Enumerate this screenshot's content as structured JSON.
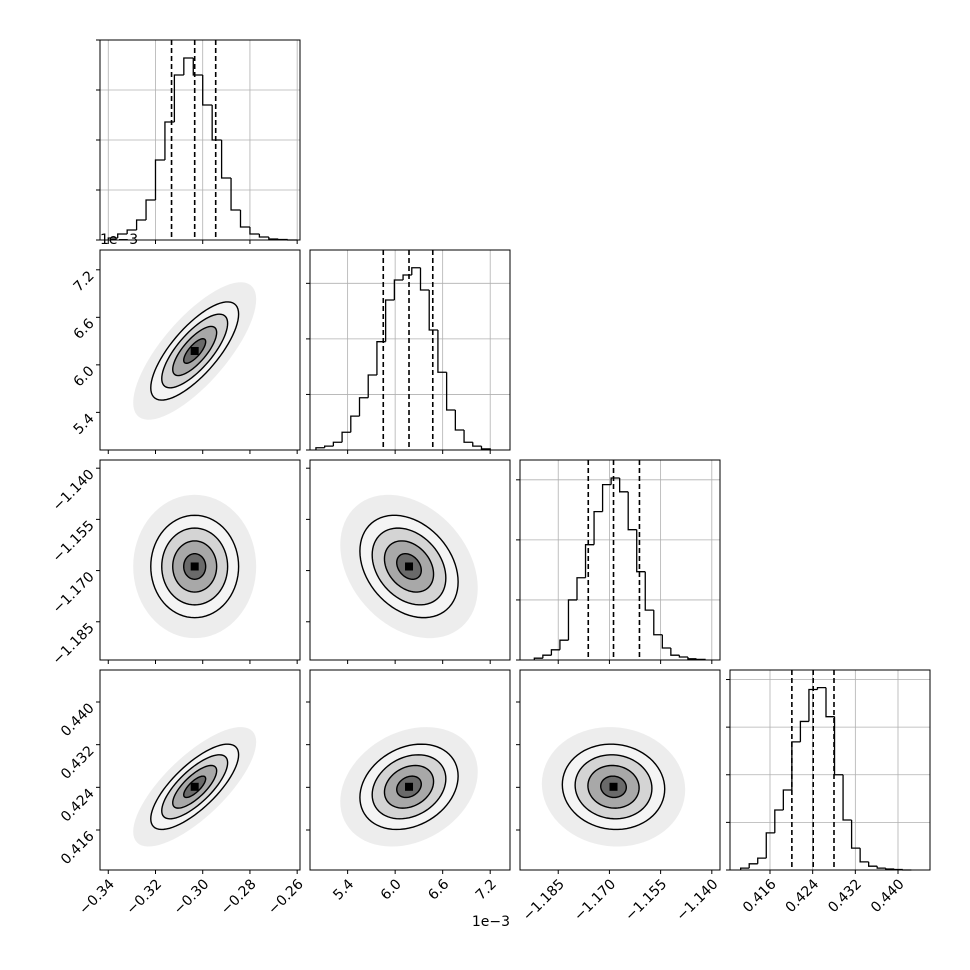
{
  "chart_data": {
    "type": "corner",
    "offset_label": "1e−3",
    "levels": [
      0.5,
      1,
      1.5,
      2
    ],
    "parameters": [
      {
        "lim": [
          -0.3435,
          -0.2588
        ],
        "ticks": [
          {
            "value": -0.34,
            "label": "−0.34"
          },
          {
            "value": -0.32,
            "label": "−0.32"
          },
          {
            "value": -0.3,
            "label": "−0.30"
          },
          {
            "value": -0.28,
            "label": "−0.28"
          },
          {
            "value": -0.26,
            "label": "−0.26"
          }
        ],
        "quantiles": [
          -0.3132,
          -0.3034,
          -0.2945
        ],
        "sigma": 0.0093,
        "bins": [
          -0.34,
          -0.336,
          -0.332,
          -0.328,
          -0.324,
          -0.32,
          -0.316,
          -0.312,
          -0.308,
          -0.304,
          -0.3,
          -0.296,
          -0.292,
          -0.288,
          -0.284,
          -0.28,
          -0.276,
          -0.272,
          -0.268,
          -0.264,
          -0.26
        ],
        "counts": [
          0.04,
          0.12,
          0.2,
          0.4,
          0.8,
          1.6,
          2.36,
          3.3,
          3.64,
          3.3,
          2.7,
          2.0,
          1.24,
          0.6,
          0.26,
          0.12,
          0.06,
          0.02,
          0.01,
          0
        ],
        "hist_ylim": [
          0,
          4
        ],
        "hist_yticks": [
          0,
          1,
          2,
          3,
          4
        ]
      },
      {
        "lim": [
          4.925,
          7.45
        ],
        "ticks": [
          5.4,
          {
            "value": 6.0,
            "label": "6.0"
          },
          6.6,
          7.2
        ],
        "quantiles": [
          5.85,
          6.175,
          6.475
        ],
        "sigma": 0.31,
        "bins": [
          5.0,
          5.11,
          5.22,
          5.33,
          5.44,
          5.55,
          5.66,
          5.77,
          5.88,
          5.99,
          6.1,
          6.21,
          6.32,
          6.43,
          6.54,
          6.65,
          6.76,
          6.87,
          6.98,
          7.09,
          7.2
        ],
        "counts": [
          0.04,
          0.07,
          0.14,
          0.32,
          0.61,
          0.94,
          1.35,
          1.95,
          2.7,
          3.06,
          3.15,
          3.28,
          2.88,
          2.16,
          1.4,
          0.72,
          0.36,
          0.14,
          0.07,
          0.02
        ],
        "hist_ylim": [
          0,
          3.6
        ],
        "hist_yticks": [
          0,
          1,
          2,
          3
        ]
      },
      {
        "lim": [
          -1.1962,
          -1.1376
        ],
        "ticks": [
          {
            "value": -1.185,
            "label": "−1.185"
          },
          {
            "value": -1.17,
            "label": "−1.170"
          },
          {
            "value": -1.155,
            "label": "−1.155"
          },
          {
            "value": -1.14,
            "label": "−1.140"
          }
        ],
        "quantiles": [
          -1.1762,
          -1.1688,
          -1.1612
        ],
        "sigma": 0.0075,
        "bins": [
          -1.192,
          -1.1895,
          -1.187,
          -1.1845,
          -1.182,
          -1.1795,
          -1.177,
          -1.1745,
          -1.172,
          -1.1695,
          -1.167,
          -1.1645,
          -1.162,
          -1.1595,
          -1.157,
          -1.1545,
          -1.152,
          -1.1495,
          -1.147,
          -1.1445,
          -1.142
        ],
        "counts": [
          0.03,
          0.08,
          0.17,
          0.33,
          1.0,
          1.37,
          1.92,
          2.47,
          2.92,
          3.03,
          2.8,
          2.17,
          1.47,
          0.83,
          0.42,
          0.2,
          0.08,
          0.05,
          0.02,
          0.01
        ],
        "hist_ylim": [
          0,
          3.33
        ],
        "hist_yticks": [
          0,
          1,
          2,
          3
        ]
      },
      {
        "lim": [
          0.4085,
          0.446
        ],
        "ticks": [
          0.416,
          0.424,
          0.432,
          {
            "value": 0.44,
            "label": "0.440"
          }
        ],
        "quantiles": [
          0.4201,
          0.4241,
          0.428
        ],
        "sigma": 0.004,
        "bins": [
          0.4105,
          0.4121,
          0.4137,
          0.4153,
          0.4169,
          0.4185,
          0.4201,
          0.4217,
          0.4233,
          0.4249,
          0.4265,
          0.4281,
          0.4297,
          0.4313,
          0.4329,
          0.4345,
          0.4361,
          0.4377,
          0.4393,
          0.4409,
          0.4425
        ],
        "counts": [
          0.04,
          0.13,
          0.25,
          0.78,
          1.26,
          1.68,
          2.69,
          3.12,
          3.79,
          3.83,
          3.22,
          2.0,
          1.05,
          0.46,
          0.17,
          0.08,
          0.04,
          0.02,
          0.01,
          0
        ],
        "hist_ylim": [
          0,
          4.2
        ],
        "hist_yticks": [
          0,
          1,
          2,
          3,
          4
        ]
      }
    ],
    "pairs": [
      {
        "x": 0,
        "y": 1,
        "rho": 0.75
      },
      {
        "x": 0,
        "y": 2,
        "rho": 0.0
      },
      {
        "x": 1,
        "y": 2,
        "rho": -0.3
      },
      {
        "x": 0,
        "y": 3,
        "rho": 0.75
      },
      {
        "x": 1,
        "y": 3,
        "rho": 0.25
      },
      {
        "x": 2,
        "y": 3,
        "rho": -0.05
      }
    ]
  }
}
